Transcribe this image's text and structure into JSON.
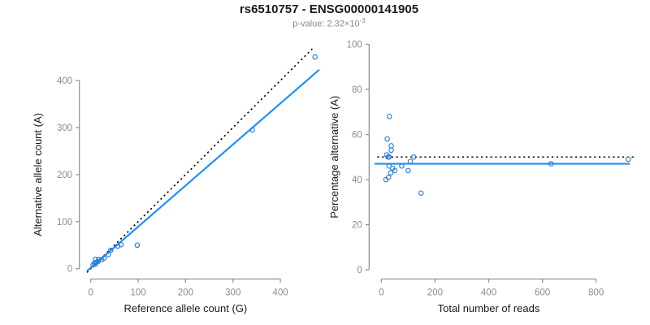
{
  "header": {
    "title": "rs6510757 - ENSG00000141905",
    "subtitle_prefix": "p-value: 2.32×10",
    "subtitle_exponent": "-3"
  },
  "colors": {
    "point_blue": "#2b7fd4",
    "line_blue": "#1e90ff",
    "identity_black": "#000000",
    "axis_gray": "#8c8c8c",
    "tick_text_gray": "#8c8c8c",
    "axis_title_black": "#1a1a1a",
    "subtitle_gray": "#8a8a8a"
  },
  "chart_data": [
    {
      "type": "scatter",
      "panel": "left",
      "title": "rs6510757 - ENSG00000141905",
      "xlabel": "Reference allele count (G)",
      "ylabel": "Alternative allele count (A)",
      "xticks": [
        0,
        100,
        200,
        300,
        400
      ],
      "yticks": [
        0,
        100,
        200,
        300,
        400
      ],
      "xlim": [
        -19,
        491
      ],
      "ylim": [
        -18,
        468
      ],
      "grid": false,
      "points": [
        [
          5,
          8
        ],
        [
          8,
          12
        ],
        [
          10,
          20
        ],
        [
          10,
          10
        ],
        [
          12,
          14
        ],
        [
          15,
          15
        ],
        [
          17,
          20
        ],
        [
          23,
          19
        ],
        [
          28,
          22
        ],
        [
          37,
          30
        ],
        [
          42,
          39
        ],
        [
          57,
          48
        ],
        [
          64,
          51
        ],
        [
          98,
          50
        ],
        [
          341,
          295
        ],
        [
          473,
          450
        ]
      ],
      "lines": [
        {
          "name": "identity-line",
          "style": "dotted",
          "color": "#000000",
          "points": [
            [
              -8,
              -8
            ],
            [
              470,
              470
            ]
          ]
        },
        {
          "name": "fit-line",
          "style": "solid",
          "color": "#1e90ff",
          "points": [
            [
              -8,
              -5
            ],
            [
              482,
              423
            ]
          ]
        }
      ]
    },
    {
      "type": "scatter",
      "panel": "right",
      "xlabel": "Total number of reads",
      "ylabel": "Percentage alternative (A)",
      "xticks": [
        0,
        200,
        400,
        600,
        800
      ],
      "yticks": [
        0,
        20,
        40,
        60,
        80,
        100
      ],
      "xlim": [
        -46,
        966
      ],
      "ylim": [
        -4,
        104
      ],
      "grid": false,
      "points": [
        [
          17,
          40
        ],
        [
          20,
          51
        ],
        [
          22,
          58
        ],
        [
          25,
          50
        ],
        [
          27,
          41
        ],
        [
          29,
          50
        ],
        [
          29,
          46
        ],
        [
          30,
          68
        ],
        [
          35,
          43
        ],
        [
          37,
          55
        ],
        [
          37,
          53
        ],
        [
          42,
          45
        ],
        [
          50,
          44
        ],
        [
          76,
          46
        ],
        [
          100,
          44
        ],
        [
          108,
          48
        ],
        [
          121,
          50
        ],
        [
          148,
          34
        ],
        [
          632,
          47
        ],
        [
          920,
          49
        ]
      ],
      "lines": [
        {
          "name": "identity-line",
          "style": "dotted",
          "color": "#000000",
          "points": [
            [
              -15,
              50
            ],
            [
              950,
              50
            ]
          ]
        },
        {
          "name": "fit-line",
          "style": "solid",
          "color": "#1e90ff",
          "points": [
            [
              -25,
              47
            ],
            [
              925,
              47
            ]
          ]
        }
      ]
    }
  ]
}
